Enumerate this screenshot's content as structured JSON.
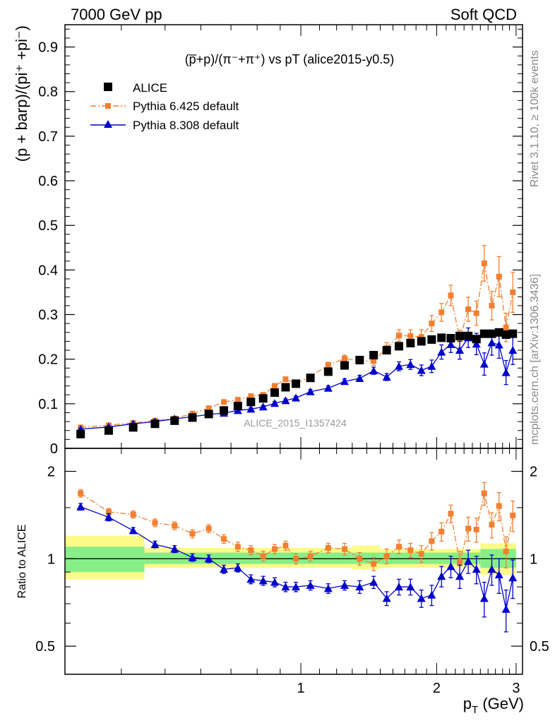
{
  "header": {
    "left": "7000 GeV pp",
    "right": "Soft QCD"
  },
  "side_labels": {
    "rivet": "Rivet 3.1.10, ≥ 100k events",
    "mcplots": "mcplots.cern.ch [arXiv:1306.3436]"
  },
  "watermark": "ALICE_2015_I1357424",
  "colors": {
    "alice": "#000000",
    "pythia6": "#f47f30",
    "pythia8": "#0000cc",
    "band_green": "#88ee88",
    "band_yellow": "#fbfb88"
  },
  "chart_data": [
    {
      "type": "scatter",
      "title": "(p̅+p)/(π⁻+π⁺) vs pT (alice2015-y0.5)",
      "ylabel": "(p + barp)/(pi⁺ +pi⁻)",
      "xlabel": "p_T (GeV)",
      "xlim": [
        0.3,
        3.1
      ],
      "ylim": [
        0,
        0.95
      ],
      "yticks": [
        "0",
        "0.1",
        "0.2",
        "0.3",
        "0.4",
        "0.5",
        "0.6",
        "0.7",
        "0.8",
        "0.9"
      ],
      "xscale": "log",
      "legend": {
        "placement": "top-left",
        "entries": [
          "ALICE",
          "Pythia 6.425 default",
          "Pythia 8.308 default"
        ]
      },
      "x": [
        0.325,
        0.375,
        0.425,
        0.475,
        0.525,
        0.575,
        0.625,
        0.675,
        0.725,
        0.775,
        0.825,
        0.875,
        0.925,
        0.975,
        1.05,
        1.15,
        1.25,
        1.35,
        1.45,
        1.55,
        1.65,
        1.75,
        1.85,
        1.95,
        2.05,
        2.15,
        2.25,
        2.35,
        2.45,
        2.55,
        2.65,
        2.75,
        2.85,
        2.95
      ],
      "series": [
        {
          "name": "ALICE",
          "marker": "square",
          "values": [
            0.032,
            0.04,
            0.047,
            0.055,
            0.062,
            0.069,
            0.077,
            0.085,
            0.095,
            0.104,
            0.112,
            0.125,
            0.137,
            0.145,
            0.158,
            0.172,
            0.186,
            0.198,
            0.209,
            0.22,
            0.229,
            0.236,
            0.24,
            0.244,
            0.248,
            0.247,
            0.252,
            0.252,
            0.245,
            0.257,
            0.257,
            0.26,
            0.255,
            0.257
          ]
        },
        {
          "name": "Pythia 6.425 default",
          "marker": "square",
          "values": [
            0.047,
            0.052,
            0.057,
            0.062,
            0.067,
            0.078,
            0.09,
            0.104,
            0.109,
            0.117,
            0.12,
            0.14,
            0.155,
            0.145,
            0.161,
            0.187,
            0.201,
            0.197,
            0.196,
            0.225,
            0.253,
            0.252,
            0.25,
            0.28,
            0.305,
            0.343,
            0.245,
            0.312,
            0.303,
            0.415,
            0.32,
            0.385,
            0.271,
            0.35
          ],
          "errors": [
            0.002,
            0.002,
            0.002,
            0.002,
            0.002,
            0.002,
            0.003,
            0.003,
            0.003,
            0.003,
            0.004,
            0.004,
            0.005,
            0.005,
            0.005,
            0.006,
            0.008,
            0.008,
            0.01,
            0.012,
            0.013,
            0.014,
            0.016,
            0.018,
            0.02,
            0.023,
            0.02,
            0.027,
            0.027,
            0.04,
            0.032,
            0.045,
            0.032,
            0.045
          ]
        },
        {
          "name": "Pythia 8.308 default",
          "marker": "triangle",
          "values": [
            0.043,
            0.048,
            0.055,
            0.06,
            0.066,
            0.071,
            0.076,
            0.079,
            0.085,
            0.088,
            0.093,
            0.101,
            0.107,
            0.113,
            0.127,
            0.135,
            0.15,
            0.157,
            0.174,
            0.16,
            0.184,
            0.188,
            0.175,
            0.184,
            0.216,
            0.233,
            0.22,
            0.248,
            0.234,
            0.189,
            0.237,
            0.232,
            0.17,
            0.22
          ],
          "errors": [
            0.002,
            0.002,
            0.002,
            0.002,
            0.002,
            0.002,
            0.003,
            0.003,
            0.003,
            0.003,
            0.003,
            0.004,
            0.004,
            0.004,
            0.005,
            0.005,
            0.006,
            0.007,
            0.008,
            0.008,
            0.01,
            0.011,
            0.012,
            0.014,
            0.016,
            0.018,
            0.02,
            0.022,
            0.024,
            0.025,
            0.028,
            0.03,
            0.027,
            0.032
          ]
        }
      ]
    },
    {
      "type": "scatter",
      "title": "",
      "ylabel": "Ratio to ALICE",
      "xlabel": "p_T (GeV)",
      "xlim": [
        0.3,
        3.1
      ],
      "ylim": [
        0.4,
        2.4
      ],
      "yscale": "log",
      "yticks": [
        "0.5",
        "1",
        "2"
      ],
      "xticks": [
        "1",
        "2",
        "3"
      ],
      "x": [
        0.325,
        0.375,
        0.425,
        0.475,
        0.525,
        0.575,
        0.625,
        0.675,
        0.725,
        0.775,
        0.825,
        0.875,
        0.925,
        0.975,
        1.05,
        1.15,
        1.25,
        1.35,
        1.45,
        1.55,
        1.65,
        1.75,
        1.85,
        1.95,
        2.05,
        2.15,
        2.25,
        2.35,
        2.45,
        2.55,
        2.65,
        2.75,
        2.85,
        2.95
      ],
      "bands": [
        {
          "x0": 0.3,
          "x1": 0.45,
          "green": [
            0.9,
            1.1
          ],
          "yellow": [
            0.85,
            1.2
          ]
        },
        {
          "x0": 0.45,
          "x1": 1.3,
          "green": [
            0.96,
            1.05
          ],
          "yellow": [
            0.93,
            1.09
          ]
        },
        {
          "x0": 1.3,
          "x1": 1.5,
          "green": [
            0.96,
            1.05
          ],
          "yellow": [
            0.92,
            1.11
          ]
        },
        {
          "x0": 1.5,
          "x1": 2.5,
          "green": [
            0.96,
            1.05
          ],
          "yellow": [
            0.93,
            1.08
          ]
        },
        {
          "x0": 2.5,
          "x1": 3.0,
          "green": [
            0.93,
            1.08
          ],
          "yellow": [
            0.88,
            1.13
          ]
        }
      ],
      "series": [
        {
          "name": "Pythia 6.425 default",
          "values": [
            1.68,
            1.45,
            1.42,
            1.33,
            1.3,
            1.22,
            1.27,
            1.17,
            1.1,
            1.07,
            1.02,
            1.08,
            1.11,
            1.0,
            1.02,
            1.09,
            1.08,
            1.0,
            0.96,
            1.02,
            1.1,
            1.07,
            1.04,
            1.15,
            1.24,
            1.43,
            0.97,
            1.27,
            1.26,
            1.68,
            1.31,
            1.52,
            1.06,
            1.41
          ],
          "errors": [
            0.05,
            0.04,
            0.04,
            0.04,
            0.04,
            0.04,
            0.04,
            0.04,
            0.04,
            0.04,
            0.04,
            0.04,
            0.04,
            0.04,
            0.04,
            0.04,
            0.05,
            0.05,
            0.05,
            0.06,
            0.06,
            0.06,
            0.07,
            0.08,
            0.09,
            0.1,
            0.09,
            0.12,
            0.12,
            0.15,
            0.13,
            0.17,
            0.13,
            0.17
          ]
        },
        {
          "name": "Pythia 8.308 default",
          "values": [
            1.51,
            1.39,
            1.25,
            1.12,
            1.08,
            1.01,
            1.0,
            0.92,
            0.93,
            0.85,
            0.84,
            0.83,
            0.8,
            0.8,
            0.81,
            0.79,
            0.81,
            0.8,
            0.83,
            0.73,
            0.8,
            0.8,
            0.73,
            0.75,
            0.87,
            0.94,
            0.87,
            0.98,
            0.92,
            0.73,
            0.92,
            0.88,
            0.67,
            0.86
          ],
          "errors": [
            0.04,
            0.04,
            0.03,
            0.03,
            0.03,
            0.03,
            0.03,
            0.03,
            0.03,
            0.03,
            0.03,
            0.03,
            0.03,
            0.03,
            0.03,
            0.03,
            0.03,
            0.04,
            0.04,
            0.04,
            0.05,
            0.05,
            0.05,
            0.06,
            0.07,
            0.08,
            0.08,
            0.09,
            0.1,
            0.1,
            0.11,
            0.12,
            0.11,
            0.13
          ]
        }
      ]
    }
  ]
}
